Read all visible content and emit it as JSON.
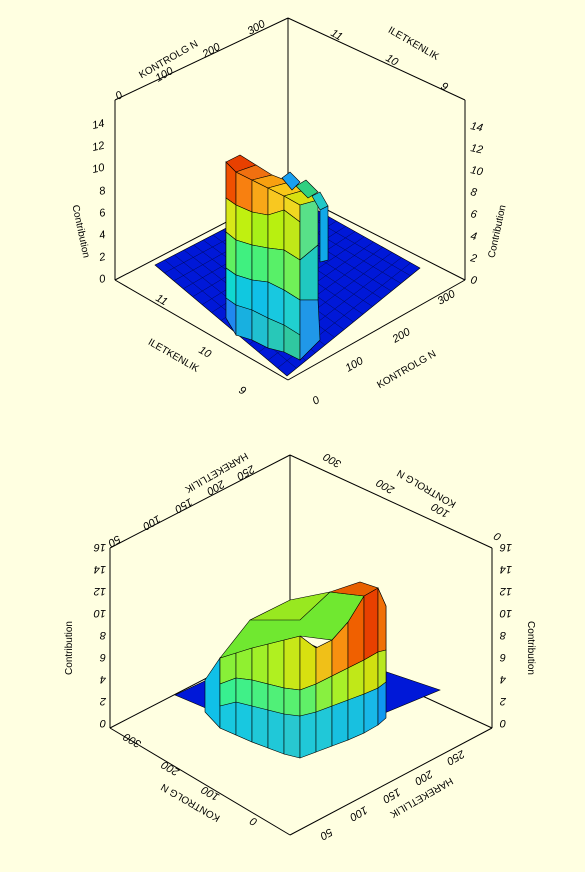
{
  "page": {
    "background": "#ffffe1"
  },
  "chart_data": [
    {
      "type": "surface3d",
      "x_axis": {
        "label": "KONTROLG N",
        "ticks": [
          "0",
          "100",
          "200",
          "300"
        ],
        "range": [
          0,
          300
        ]
      },
      "y_axis": {
        "label": "ILETKENLIK",
        "ticks": [
          "9",
          "10",
          "11"
        ],
        "range": [
          9,
          11
        ]
      },
      "z_axis": {
        "label": "Contribution",
        "ticks": [
          "0",
          "2",
          "4",
          "6",
          "8",
          "10",
          "12",
          "14"
        ],
        "range": [
          0,
          14
        ]
      },
      "colormap": [
        "#0018d8",
        "#00a8f0",
        "#18f098",
        "#b0f000",
        "#f8b400",
        "#f04800"
      ],
      "peak_contribution": 12.5,
      "mirrored": false
    },
    {
      "type": "surface3d",
      "x_axis": {
        "label": "HAREKETLILIK",
        "ticks": [
          "50",
          "100",
          "150",
          "200",
          "250"
        ],
        "range": [
          50,
          250
        ]
      },
      "y_axis": {
        "label": "KONTROLG N",
        "ticks": [
          "0",
          "100",
          "200",
          "300"
        ],
        "range": [
          0,
          300
        ]
      },
      "z_axis": {
        "label": "Contribution",
        "ticks": [
          "0",
          "2",
          "4",
          "6",
          "8",
          "10",
          "12",
          "14",
          "16"
        ],
        "range": [
          0,
          16
        ]
      },
      "colormap": [
        "#0018d8",
        "#00a8f0",
        "#18f098",
        "#b0f000",
        "#f8b400",
        "#f04800"
      ],
      "peak_contribution": 15.5,
      "mirrored": true
    }
  ]
}
